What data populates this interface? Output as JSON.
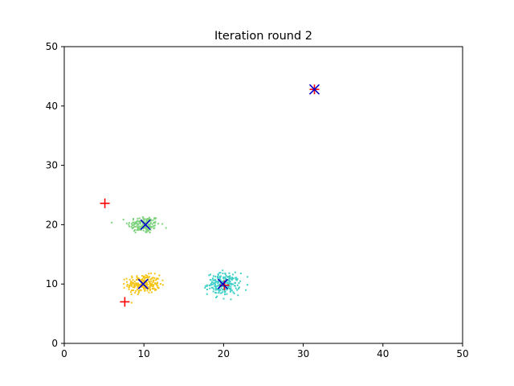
{
  "chart_data": {
    "type": "scatter",
    "title": "Iteration round 2",
    "xlabel": "",
    "ylabel": "",
    "xlim": [
      0,
      50
    ],
    "ylim": [
      0,
      50
    ],
    "xticks": [
      0,
      10,
      20,
      30,
      40,
      50
    ],
    "yticks": [
      0,
      10,
      20,
      30,
      40,
      50
    ],
    "grid": false,
    "clusters": [
      {
        "center": [
          10,
          20
        ],
        "spread": [
          1.0,
          0.75
        ],
        "count": 160,
        "color": "#7fd37f"
      },
      {
        "center": [
          10,
          10
        ],
        "spread": [
          1.0,
          0.75
        ],
        "count": 220,
        "color": "#f5c518"
      },
      {
        "center": [
          20,
          10
        ],
        "spread": [
          1.0,
          0.9
        ],
        "count": 220,
        "color": "#40d0c8"
      }
    ],
    "previous_centroids": {
      "marker": "+",
      "color": "#ff0000",
      "points": [
        [
          5.1,
          23.6
        ],
        [
          7.6,
          7.0
        ],
        [
          20.1,
          9.8
        ],
        [
          31.4,
          42.8
        ]
      ]
    },
    "current_centroids": {
      "marker": "x",
      "color": "#0000cc",
      "points": [
        [
          10.2,
          20.0
        ],
        [
          9.9,
          10.0
        ],
        [
          19.9,
          10.0
        ],
        [
          31.4,
          42.8
        ]
      ]
    }
  }
}
